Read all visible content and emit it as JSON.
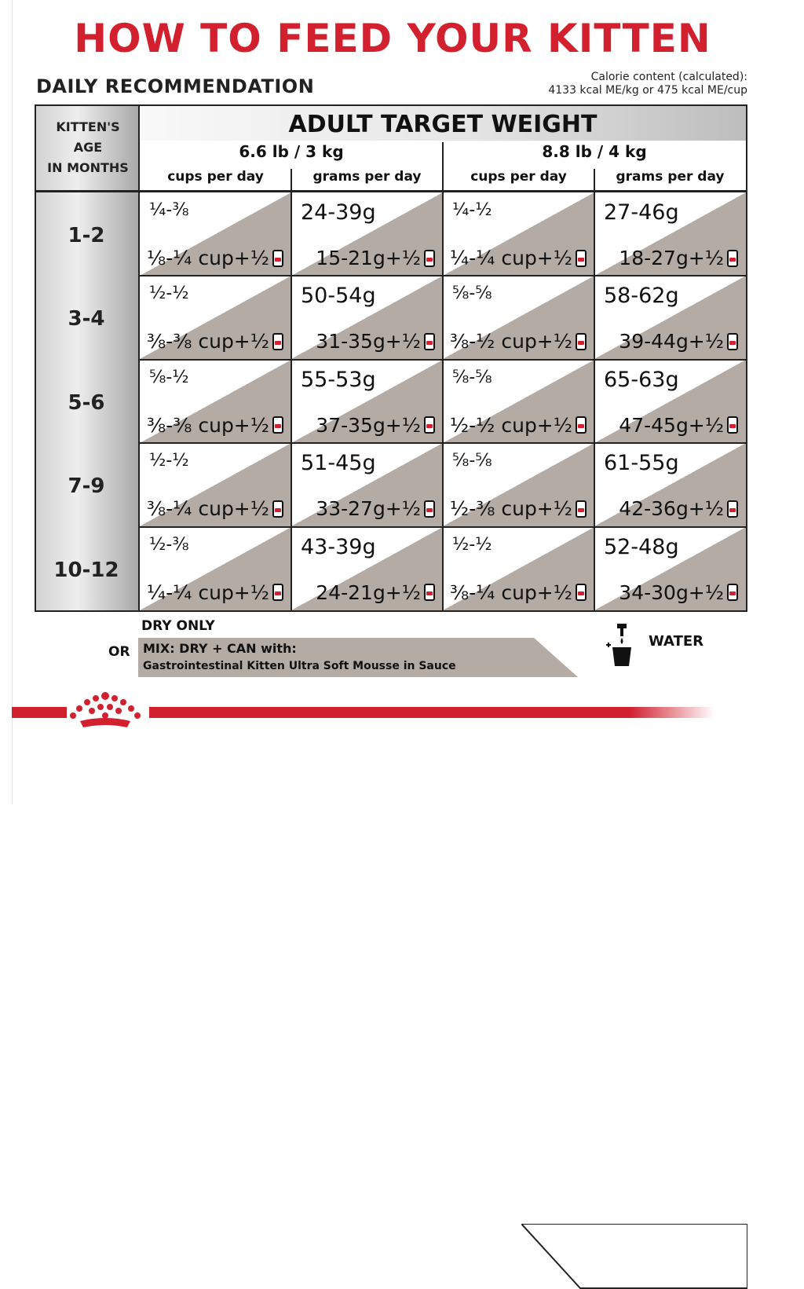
{
  "title": "HOW TO FEED YOUR KITTEN",
  "daily_recommendation": "DAILY RECOMMENDATION",
  "calorie": {
    "line1": "Calorie content (calculated):",
    "line2": "4133 kcal ME/kg or 475 kcal ME/cup"
  },
  "table": {
    "age_header": [
      "KITTEN'S",
      "AGE",
      "IN MONTHS"
    ],
    "target_header": "ADULT TARGET WEIGHT",
    "weights": [
      "6.6 lb / 3 kg",
      "8.8 lb / 4 kg"
    ],
    "subheaders": [
      "cups per day",
      "grams per day",
      "cups per day",
      "grams per day"
    ],
    "rows": [
      {
        "age": "1-2",
        "cells": [
          {
            "top": "¼-⅜",
            "bottom": "⅛-¼ cup+½"
          },
          {
            "top": "24-39g",
            "bottom": "15-21g+½"
          },
          {
            "top": "¼-½",
            "bottom": "¼-¼ cup+½"
          },
          {
            "top": "27-46g",
            "bottom": "18-27g+½"
          }
        ]
      },
      {
        "age": "3-4",
        "cells": [
          {
            "top": "½-½",
            "bottom": "⅜-⅜ cup+½"
          },
          {
            "top": "50-54g",
            "bottom": "31-35g+½"
          },
          {
            "top": "⅝-⅝",
            "bottom": "⅜-½ cup+½"
          },
          {
            "top": "58-62g",
            "bottom": "39-44g+½"
          }
        ]
      },
      {
        "age": "5-6",
        "cells": [
          {
            "top": "⅝-½",
            "bottom": "⅜-⅜ cup+½"
          },
          {
            "top": "55-53g",
            "bottom": "37-35g+½"
          },
          {
            "top": "⅝-⅝",
            "bottom": "½-½ cup+½"
          },
          {
            "top": "65-63g",
            "bottom": "47-45g+½"
          }
        ]
      },
      {
        "age": "7-9",
        "cells": [
          {
            "top": "½-½",
            "bottom": "⅜-¼ cup+½"
          },
          {
            "top": "51-45g",
            "bottom": "33-27g+½"
          },
          {
            "top": "⅝-⅝",
            "bottom": "½-⅜ cup+½"
          },
          {
            "top": "61-55g",
            "bottom": "42-36g+½"
          }
        ]
      },
      {
        "age": "10-12",
        "cells": [
          {
            "top": "½-⅜",
            "bottom": "¼-¼ cup+½"
          },
          {
            "top": "43-39g",
            "bottom": "24-21g+½"
          },
          {
            "top": "½-½",
            "bottom": "⅜-¼ cup+½"
          },
          {
            "top": "52-48g",
            "bottom": "34-30g+½"
          }
        ]
      }
    ]
  },
  "legend": {
    "dry_only": "DRY ONLY",
    "or": "OR",
    "mix": "MIX: DRY + CAN with:",
    "mix_detail": "Gastrointestinal Kitten Ultra Soft Mousse in Sauce",
    "water": "WATER"
  },
  "colors": {
    "brand_red": "#d2202f",
    "cell_gray": "#b3aba4"
  },
  "icons": [
    "can-icon",
    "water-icon",
    "crown-logo-icon"
  ]
}
